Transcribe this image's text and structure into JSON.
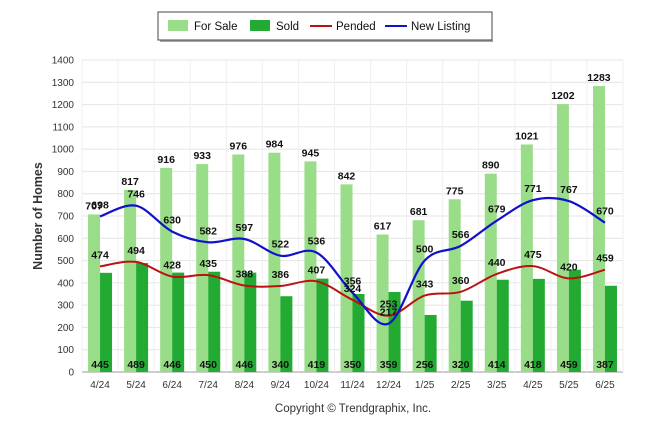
{
  "chart_data": {
    "type": "bar",
    "categories": [
      "4/24",
      "5/24",
      "6/24",
      "7/24",
      "8/24",
      "9/24",
      "10/24",
      "11/24",
      "12/24",
      "1/25",
      "2/25",
      "3/25",
      "4/25",
      "5/25",
      "6/25"
    ],
    "series": [
      {
        "name": "For Sale",
        "kind": "bar",
        "color": "#99dd88",
        "values": [
          707,
          817,
          916,
          933,
          976,
          984,
          945,
          842,
          617,
          681,
          775,
          890,
          1021,
          1202,
          1283
        ]
      },
      {
        "name": "Sold",
        "kind": "bar",
        "color": "#22aa33",
        "values": [
          445,
          489,
          446,
          450,
          446,
          340,
          419,
          350,
          359,
          256,
          320,
          414,
          418,
          459,
          387
        ]
      },
      {
        "name": "Pended",
        "kind": "line",
        "color": "#bb1111",
        "values": [
          474,
          494,
          428,
          435,
          388,
          386,
          407,
          324,
          253,
          343,
          360,
          440,
          475,
          420,
          459
        ]
      },
      {
        "name": "New Listing",
        "kind": "line",
        "color": "#1111cc",
        "values": [
          698,
          746,
          630,
          582,
          597,
          522,
          536,
          356,
          217,
          500,
          566,
          679,
          771,
          767,
          670
        ]
      }
    ],
    "ylabel": "Number of Homes",
    "ylim": [
      0,
      1400
    ],
    "yticks": [
      "0",
      "100",
      "200",
      "300",
      "400",
      "500",
      "600",
      "700",
      "800",
      "900",
      "1000",
      "1100",
      "1200",
      "1300",
      "1400"
    ],
    "legend_position": "top-center",
    "grid": true
  },
  "copyright": "Copyright © Trendgraphix, Inc."
}
